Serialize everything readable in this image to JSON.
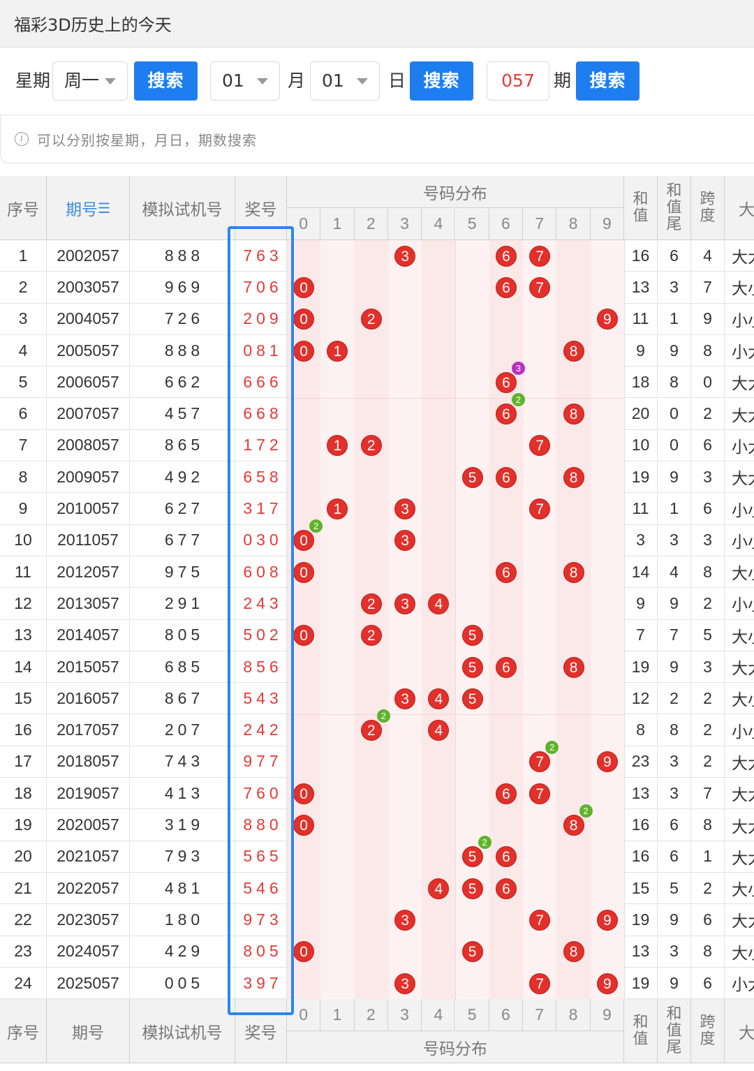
{
  "header": {
    "title": "福彩3D历史上的今天"
  },
  "search": {
    "weekday_label": "星期",
    "weekday_value": "周一",
    "search_label": "搜索",
    "month_value": "01",
    "month_label": "月",
    "day_value": "01",
    "day_label": "日",
    "issue_value": "057",
    "issue_label": "期"
  },
  "tip": {
    "text": "可以分别按星期，月日，期数搜索"
  },
  "table": {
    "headers": {
      "index": "序号",
      "issue": "期号",
      "sort_icon": "sort-icon",
      "trial": "模拟试机号",
      "prize": "奖号",
      "distribution": "号码分布",
      "sum": "和值",
      "sum_tail": "和值尾",
      "span": "跨度",
      "size": "大"
    },
    "digits": [
      "0",
      "1",
      "2",
      "3",
      "4",
      "5",
      "6",
      "7",
      "8",
      "9"
    ],
    "rows": [
      {
        "idx": "1",
        "issue": "2002057",
        "trial": "888",
        "prize": "763",
        "sum": "16",
        "tail": "6",
        "span": "4",
        "size": "大大"
      },
      {
        "idx": "2",
        "issue": "2003057",
        "trial": "969",
        "prize": "706",
        "sum": "13",
        "tail": "3",
        "span": "7",
        "size": "大小"
      },
      {
        "idx": "3",
        "issue": "2004057",
        "trial": "726",
        "prize": "209",
        "sum": "11",
        "tail": "1",
        "span": "9",
        "size": "小小"
      },
      {
        "idx": "4",
        "issue": "2005057",
        "trial": "888",
        "prize": "081",
        "sum": "9",
        "tail": "9",
        "span": "8",
        "size": "小大"
      },
      {
        "idx": "5",
        "issue": "2006057",
        "trial": "662",
        "prize": "666",
        "sum": "18",
        "tail": "8",
        "span": "0",
        "size": "大大"
      },
      {
        "idx": "6",
        "issue": "2007057",
        "trial": "457",
        "prize": "668",
        "sum": "20",
        "tail": "0",
        "span": "2",
        "size": "大大"
      },
      {
        "idx": "7",
        "issue": "2008057",
        "trial": "865",
        "prize": "172",
        "sum": "10",
        "tail": "0",
        "span": "6",
        "size": "小大"
      },
      {
        "idx": "8",
        "issue": "2009057",
        "trial": "492",
        "prize": "658",
        "sum": "19",
        "tail": "9",
        "span": "3",
        "size": "大大"
      },
      {
        "idx": "9",
        "issue": "2010057",
        "trial": "627",
        "prize": "317",
        "sum": "11",
        "tail": "1",
        "span": "6",
        "size": "小小"
      },
      {
        "idx": "10",
        "issue": "2011057",
        "trial": "677",
        "prize": "030",
        "sum": "3",
        "tail": "3",
        "span": "3",
        "size": "小小"
      },
      {
        "idx": "11",
        "issue": "2012057",
        "trial": "975",
        "prize": "608",
        "sum": "14",
        "tail": "4",
        "span": "8",
        "size": "大小"
      },
      {
        "idx": "12",
        "issue": "2013057",
        "trial": "291",
        "prize": "243",
        "sum": "9",
        "tail": "9",
        "span": "2",
        "size": "小小"
      },
      {
        "idx": "13",
        "issue": "2014057",
        "trial": "805",
        "prize": "502",
        "sum": "7",
        "tail": "7",
        "span": "5",
        "size": "大小"
      },
      {
        "idx": "14",
        "issue": "2015057",
        "trial": "685",
        "prize": "856",
        "sum": "19",
        "tail": "9",
        "span": "3",
        "size": "大大"
      },
      {
        "idx": "15",
        "issue": "2016057",
        "trial": "867",
        "prize": "543",
        "sum": "12",
        "tail": "2",
        "span": "2",
        "size": "大小"
      },
      {
        "idx": "16",
        "issue": "2017057",
        "trial": "207",
        "prize": "242",
        "sum": "8",
        "tail": "8",
        "span": "2",
        "size": "小小"
      },
      {
        "idx": "17",
        "issue": "2018057",
        "trial": "743",
        "prize": "977",
        "sum": "23",
        "tail": "3",
        "span": "2",
        "size": "大大"
      },
      {
        "idx": "18",
        "issue": "2019057",
        "trial": "413",
        "prize": "760",
        "sum": "13",
        "tail": "3",
        "span": "7",
        "size": "大大"
      },
      {
        "idx": "19",
        "issue": "2020057",
        "trial": "319",
        "prize": "880",
        "sum": "16",
        "tail": "6",
        "span": "8",
        "size": "大大"
      },
      {
        "idx": "20",
        "issue": "2021057",
        "trial": "793",
        "prize": "565",
        "sum": "16",
        "tail": "6",
        "span": "1",
        "size": "大大"
      },
      {
        "idx": "21",
        "issue": "2022057",
        "trial": "481",
        "prize": "546",
        "sum": "15",
        "tail": "5",
        "span": "2",
        "size": "大小"
      },
      {
        "idx": "22",
        "issue": "2023057",
        "trial": "180",
        "prize": "973",
        "sum": "19",
        "tail": "9",
        "span": "6",
        "size": "大大"
      },
      {
        "idx": "23",
        "issue": "2024057",
        "trial": "429",
        "prize": "805",
        "sum": "13",
        "tail": "3",
        "span": "8",
        "size": "大小"
      },
      {
        "idx": "24",
        "issue": "2025057",
        "trial": "005",
        "prize": "397",
        "sum": "19",
        "tail": "9",
        "span": "6",
        "size": "小大"
      }
    ]
  },
  "colors": {
    "accent": "#1e7ef0",
    "ball": "#e3302a",
    "badge_green": "#5fb32a",
    "badge_purple": "#b92fc0",
    "prize_text": "#e53935"
  }
}
